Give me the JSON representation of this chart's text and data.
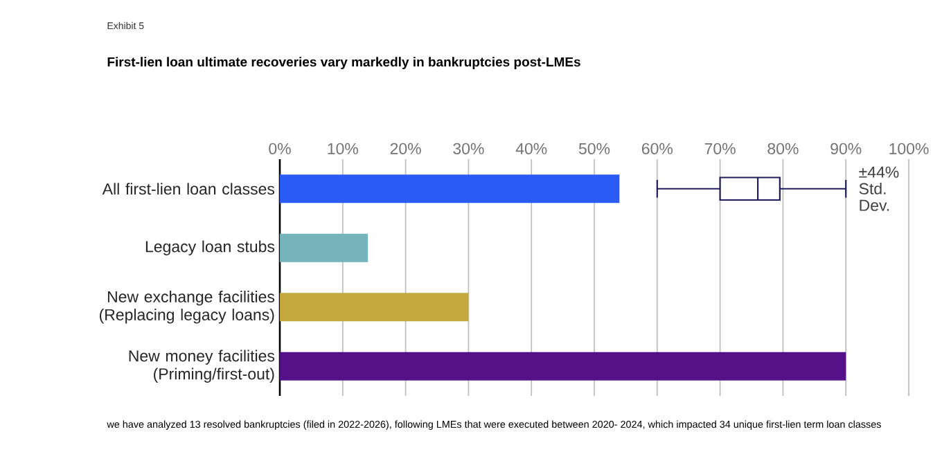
{
  "chart_data": {
    "type": "bar",
    "orientation": "horizontal",
    "title": "First-lien loan ultimate recoveries vary markedly in bankruptcies post-LMEs",
    "categories": [
      "All first-lien loan classes",
      "Legacy loan stubs",
      "New exchange facilities (Replacing legacy loans)",
      "New money facilities (Priming/first-out)"
    ],
    "series": [
      {
        "colors": [
          "#2a5cf5",
          "#76b4bc",
          "#c4aa3e",
          "#541188"
        ],
        "values": [
          54,
          14,
          30,
          90
        ]
      },
      {
        "type": "box",
        "color": "#1f1d5c",
        "boxes": [
          {
            "low": 60,
            "q1": 70,
            "median": 76,
            "q3": 79.5,
            "high": 90
          },
          null,
          null,
          null
        ]
      }
    ],
    "xlim": [
      0,
      100
    ],
    "xticks": [
      {
        "value": 0,
        "label": "0%"
      },
      {
        "value": 10,
        "label": "10%"
      },
      {
        "value": 20,
        "label": "20%"
      },
      {
        "value": 30,
        "label": "30%"
      },
      {
        "value": 40,
        "label": "40%"
      },
      {
        "value": 50,
        "label": "50%"
      },
      {
        "value": 60,
        "label": "60%"
      },
      {
        "value": 70,
        "label": "70%"
      },
      {
        "value": 80,
        "label": "80%"
      },
      {
        "value": 90,
        "label": "90%"
      },
      {
        "value": 100,
        "label": "100%"
      }
    ],
    "grid": "x",
    "annotations": [
      "Exhibit 5",
      "±44% Std. Dev.",
      "we have analyzed 13 resolved bankruptcies (filed in 2022-2026), following LMEs that were executed between 2020- 2024, which impacted 34 unique first-lien term loan classes"
    ]
  }
}
